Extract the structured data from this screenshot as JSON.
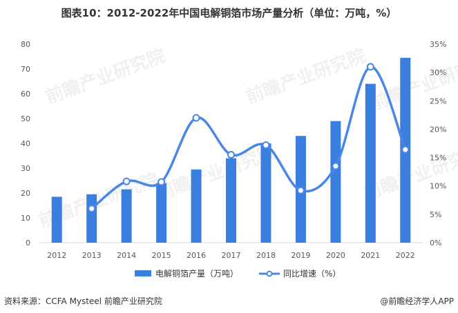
{
  "title": "图表10：2012-2022年中国电解铜箔市场产量分析（单位：万吨，%）",
  "source": "资料来源：CCFA Mysteel 前瞻产业研究院",
  "credit": "@前瞻经济学人APP",
  "watermark": "前瞻产业研究院",
  "colors": {
    "bar": "#3a7fe0",
    "line": "#4a86e8",
    "marker_fill": "#ffffff",
    "marker_stroke": "#4a86e8"
  },
  "chart_data": {
    "type": "bar",
    "categories": [
      "2012",
      "2013",
      "2014",
      "2015",
      "2016",
      "2017",
      "2018",
      "2019",
      "2020",
      "2021",
      "2022"
    ],
    "series": [
      {
        "name": "电解铜箔产量（万吨）",
        "type": "bar",
        "axis": "left",
        "values": [
          18.5,
          19.5,
          21.5,
          24.0,
          29.5,
          34.0,
          40.0,
          43.0,
          49.0,
          64.0,
          74.5
        ]
      },
      {
        "name": "同比增速（%）",
        "type": "line",
        "axis": "right",
        "smooth": true,
        "values": [
          null,
          6.0,
          10.8,
          10.7,
          22.0,
          15.5,
          17.2,
          9.2,
          13.5,
          31.0,
          16.4
        ]
      }
    ],
    "y_left": {
      "ticks": [
        "0",
        "10",
        "20",
        "30",
        "40",
        "50",
        "60",
        "70",
        "80"
      ],
      "lim": [
        0,
        80
      ]
    },
    "y_right": {
      "ticks": [
        "0%",
        "5%",
        "10%",
        "15%",
        "20%",
        "25%",
        "30%",
        "35%"
      ],
      "lim": [
        0,
        35
      ]
    },
    "legend_position": "bottom",
    "grid": false
  }
}
